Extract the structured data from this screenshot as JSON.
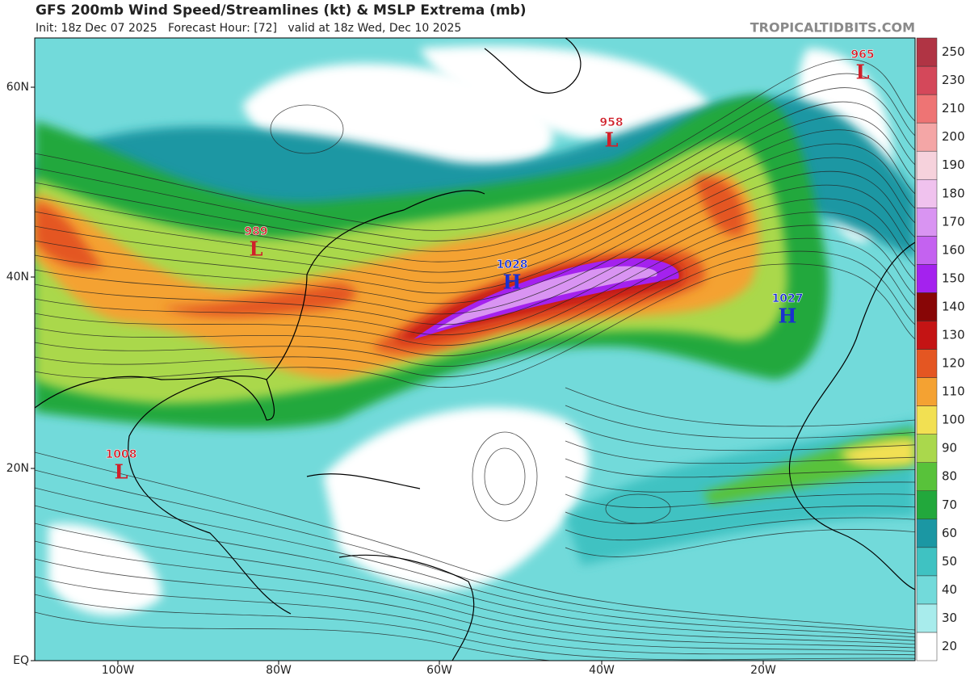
{
  "header": {
    "title": "GFS 200mb Wind Speed/Streamlines (kt) & MSLP Extrema (mb)",
    "subtitle": "Init: 18z Dec 07 2025   Forecast Hour: [72]   valid at 18z Wed, Dec 10 2025",
    "credit": "TROPICALTIDBITS.COM"
  },
  "map": {
    "lat_labels": [
      "60N",
      "40N",
      "20N",
      "EQ"
    ],
    "lon_labels": [
      "100W",
      "80W",
      "60W",
      "40W",
      "20W"
    ],
    "extrema": [
      {
        "value": "965",
        "symbol": "L"
      },
      {
        "value": "958",
        "symbol": "L"
      },
      {
        "value": "989",
        "symbol": "L"
      },
      {
        "value": "1028",
        "symbol": "H"
      },
      {
        "value": "1027",
        "symbol": "H"
      },
      {
        "value": "1008",
        "symbol": "L"
      }
    ]
  },
  "colorbar": {
    "ticks": [
      20,
      30,
      40,
      50,
      60,
      70,
      80,
      90,
      100,
      110,
      120,
      130,
      140,
      150,
      160,
      170,
      180,
      190,
      200,
      210,
      230,
      250
    ],
    "colors": [
      "#ffffff",
      "#a8ecec",
      "#72dada",
      "#3fc2c2",
      "#1b97a3",
      "#22a83c",
      "#58c23a",
      "#aad84c",
      "#f2e052",
      "#f4a232",
      "#e45622",
      "#c41414",
      "#880606",
      "#a422ee",
      "#c462f0",
      "#d994f2",
      "#f0c2ee",
      "#f6d2dc",
      "#f4a6a6",
      "#ee7474",
      "#d4485a",
      "#b03444"
    ]
  }
}
